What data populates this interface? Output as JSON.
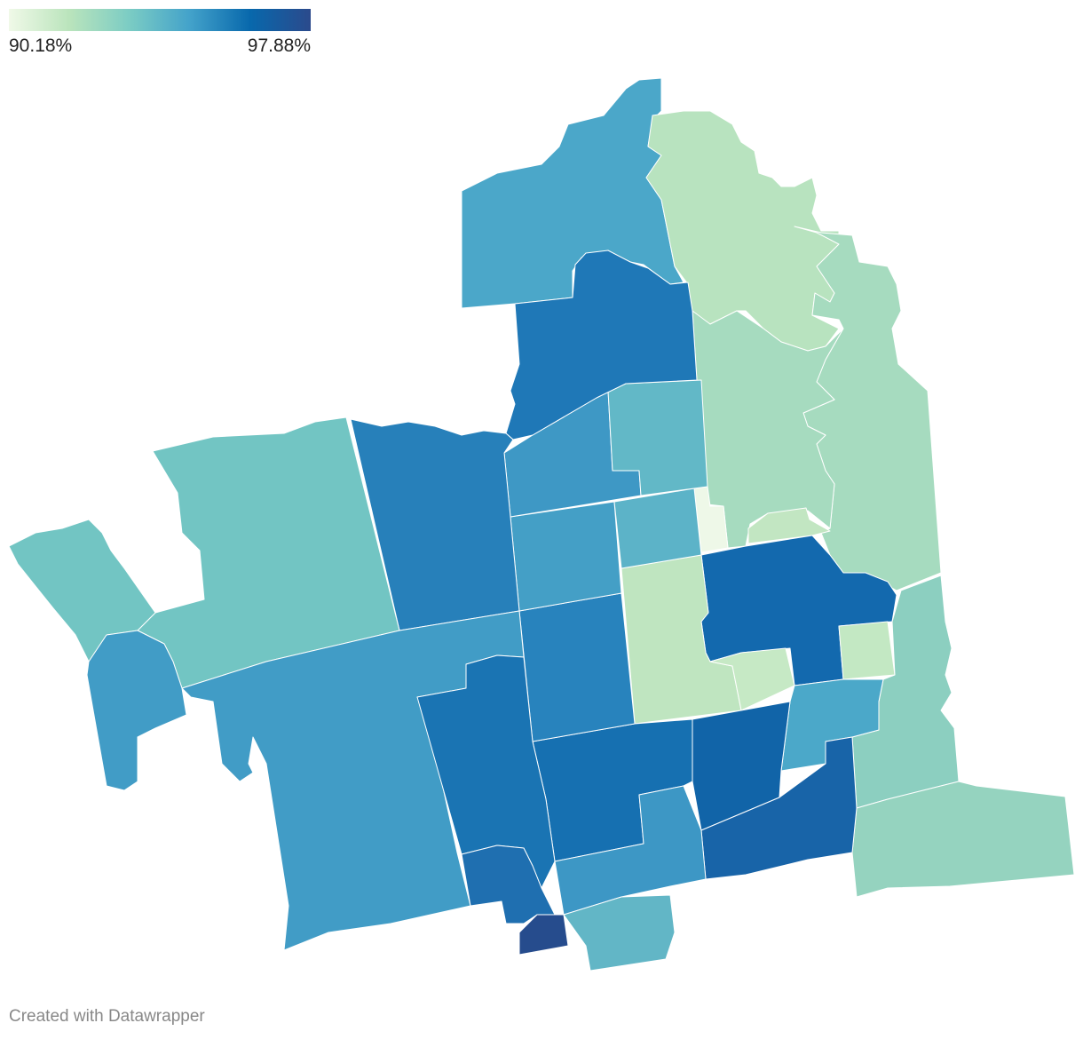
{
  "legend": {
    "min_label": "90.18%",
    "max_label": "97.88%",
    "min_value": 90.18,
    "max_value": 97.88,
    "gradient_colors": [
      "#f0f9e8",
      "#bae4bc",
      "#7bccc4",
      "#43a2ca",
      "#0868ac",
      "#2b4a8c"
    ]
  },
  "map": {
    "stroke_color": "#ffffff",
    "region_fills": [
      "#4ba7c9",
      "#b8e3bf",
      "#a6dbbf",
      "#a6dbbf",
      "#eef8e8",
      "#c2e6c2",
      "#1369ae",
      "#c3e8c3",
      "#8ccfc0",
      "#95d3bf",
      "#bfe5c0",
      "#c6e9c5",
      "#4ba8c9",
      "#1164a8",
      "#1864a8",
      "#1670b1",
      "#3d97c5",
      "#62b6c6",
      "#2883bd",
      "#449fc6",
      "#5cb3c8",
      "#3e98c5",
      "#62b8c7",
      "#1f78b7",
      "#2780ba",
      "#72c5c3",
      "#72c5c3",
      "#419cc6",
      "#419cc6",
      "#1a74b3",
      "#1f6fb0",
      "#264c8d"
    ]
  },
  "footer": {
    "credit": "Created with Datawrapper"
  }
}
